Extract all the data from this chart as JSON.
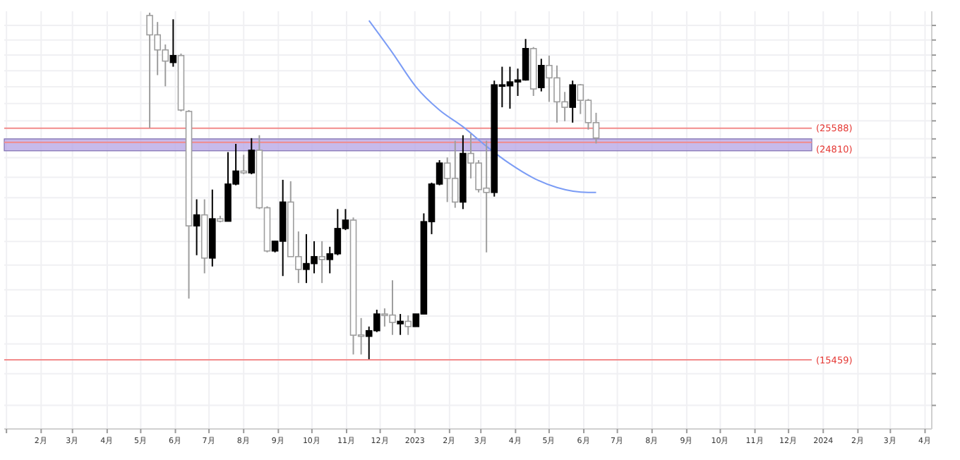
{
  "chart_data": {
    "type": "candlestick",
    "log": "y",
    "grid": true,
    "tick_labels": "x",
    "x": [
      "2022-05-09",
      "2022-05-16",
      "2022-05-23",
      "2022-05-30",
      "2022-06-06",
      "2022-06-13",
      "2022-06-20",
      "2022-06-27",
      "2022-07-04",
      "2022-07-11",
      "2022-07-18",
      "2022-07-25",
      "2022-08-01",
      "2022-08-08",
      "2022-08-15",
      "2022-08-22",
      "2022-08-29",
      "2022-09-05",
      "2022-09-12",
      "2022-09-19",
      "2022-09-26",
      "2022-10-03",
      "2022-10-10",
      "2022-10-17",
      "2022-10-24",
      "2022-10-31",
      "2022-11-07",
      "2022-11-14",
      "2022-11-21",
      "2022-11-28",
      "2022-12-05",
      "2022-12-12",
      "2022-12-19",
      "2022-12-26",
      "2023-01-02",
      "2023-01-09",
      "2023-01-16",
      "2023-01-23",
      "2023-01-30",
      "2023-02-06",
      "2023-02-13",
      "2023-02-20",
      "2023-02-27",
      "2023-03-06",
      "2023-03-13",
      "2023-03-20",
      "2023-03-27",
      "2023-04-03",
      "2023-04-10",
      "2023-04-17",
      "2023-04-24",
      "2023-05-01",
      "2023-05-08",
      "2023-05-15",
      "2023-05-22",
      "2023-05-29",
      "2023-06-05",
      "2023-06-12"
    ],
    "ohlc": [
      [
        32700,
        32900,
        25600,
        31350
      ],
      [
        31350,
        32240,
        28720,
        30340
      ],
      [
        30340,
        30700,
        28030,
        29610
      ],
      [
        29520,
        32430,
        29250,
        29970
      ],
      [
        29970,
        30100,
        26540,
        26620
      ],
      [
        26540,
        26620,
        17660,
        20690
      ],
      [
        20690,
        21920,
        19410,
        21190
      ],
      [
        21190,
        21920,
        18660,
        19290
      ],
      [
        19290,
        22390,
        18940,
        21010
      ],
      [
        21010,
        21150,
        20850,
        20900
      ],
      [
        20900,
        24290,
        20900,
        22660
      ],
      [
        22660,
        24730,
        22600,
        23310
      ],
      [
        23310,
        24150,
        23150,
        23220
      ],
      [
        23220,
        25040,
        23150,
        24390
      ],
      [
        24390,
        25200,
        21460,
        21520
      ],
      [
        21520,
        21590,
        19530,
        19590
      ],
      [
        19590,
        20030,
        19530,
        20010
      ],
      [
        20010,
        22870,
        18550,
        21790
      ],
      [
        21790,
        22800,
        19350,
        19350
      ],
      [
        19350,
        20440,
        18270,
        18820
      ],
      [
        18820,
        20320,
        18270,
        19060
      ],
      [
        19060,
        20010,
        18660,
        19350
      ],
      [
        19350,
        20010,
        18270,
        19230
      ],
      [
        19230,
        19770,
        18660,
        19470
      ],
      [
        19470,
        21460,
        19410,
        20570
      ],
      [
        20570,
        21460,
        20500,
        20950
      ],
      [
        20950,
        21070,
        15640,
        16310
      ],
      [
        16320,
        16930,
        15640,
        16270
      ],
      [
        16270,
        16620,
        15480,
        16470
      ],
      [
        16470,
        17240,
        16420,
        17080
      ],
      [
        17080,
        17290,
        16620,
        17040
      ],
      [
        17040,
        18380,
        16320,
        16770
      ],
      [
        16720,
        17080,
        16320,
        16810
      ],
      [
        16810,
        17030,
        16320,
        16620
      ],
      [
        16620,
        17080,
        16620,
        17080
      ],
      [
        17080,
        21260,
        17080,
        20880
      ],
      [
        20880,
        22730,
        20320,
        22660
      ],
      [
        22660,
        23870,
        22600,
        23720
      ],
      [
        23720,
        24010,
        21790,
        22940
      ],
      [
        22940,
        24900,
        21520,
        21790
      ],
      [
        21790,
        25200,
        21460,
        24220
      ],
      [
        24220,
        25280,
        22940,
        23720
      ],
      [
        23720,
        23870,
        22250,
        22390
      ],
      [
        22460,
        24900,
        19530,
        22250
      ],
      [
        22250,
        28380,
        22050,
        28120
      ],
      [
        28050,
        29250,
        26780,
        28120
      ],
      [
        28060,
        29250,
        26700,
        28300
      ],
      [
        28300,
        29130,
        27450,
        28420
      ],
      [
        28420,
        31070,
        28380,
        30430
      ],
      [
        30430,
        30530,
        27450,
        27870
      ],
      [
        27950,
        29760,
        27720,
        29330
      ],
      [
        29330,
        29970,
        27100,
        28550
      ],
      [
        28550,
        29330,
        25900,
        27100
      ],
      [
        27100,
        27690,
        25980,
        26780
      ],
      [
        26780,
        28380,
        25900,
        28120
      ],
      [
        28120,
        28170,
        26390,
        27190
      ],
      [
        27190,
        27270,
        25510,
        25900
      ],
      [
        25900,
        26460,
        24750,
        25050
      ]
    ],
    "series": [
      {
        "type": "line",
        "color": "#7b9cf5",
        "x": [
          "2022-11-21",
          "2022-12-12",
          "2023-01-02",
          "2023-01-23",
          "2023-02-13",
          "2023-03-06",
          "2023-03-27",
          "2023-04-17",
          "2023-05-08",
          "2023-06-05",
          "2023-06-12"
        ],
        "values": [
          32340,
          30150,
          28000,
          26620,
          25670,
          24600,
          23680,
          22960,
          22490,
          22250,
          22250
        ]
      }
    ],
    "ylim": [
      13300,
      33000
    ],
    "yticks": [
      {
        "value": 14000,
        "label": null
      },
      {
        "value": 15000,
        "label": null
      },
      {
        "value": 16000,
        "label": null
      },
      {
        "value": 17000,
        "label": null
      },
      {
        "value": 18000,
        "label": null
      },
      {
        "value": 19000,
        "label": null
      },
      {
        "value": 20000,
        "label": null
      },
      {
        "value": 21000,
        "label": null
      },
      {
        "value": 22000,
        "label": null
      },
      {
        "value": 23000,
        "label": null
      },
      {
        "value": 24000,
        "label": null
      },
      {
        "value": 25000,
        "label": null
      },
      {
        "value": 26000,
        "label": null
      },
      {
        "value": 27000,
        "label": null
      },
      {
        "value": 28000,
        "label": null
      },
      {
        "value": 29000,
        "label": null
      },
      {
        "value": 30000,
        "label": null
      },
      {
        "value": 31000,
        "label": null
      },
      {
        "value": 32000,
        "label": null
      }
    ],
    "xlim": [
      "2021-12-30",
      "2024-04-07"
    ],
    "xticks": [
      {
        "value": "2022-01-01",
        "label": null
      },
      {
        "value": "2022-02-01",
        "label": "2月"
      },
      {
        "value": "2022-03-01",
        "label": "3月"
      },
      {
        "value": "2022-04-01",
        "label": "4月"
      },
      {
        "value": "2022-05-01",
        "label": "5月"
      },
      {
        "value": "2022-06-01",
        "label": "6月"
      },
      {
        "value": "2022-07-01",
        "label": "7月"
      },
      {
        "value": "2022-08-01",
        "label": "8月"
      },
      {
        "value": "2022-09-01",
        "label": "9月"
      },
      {
        "value": "2022-10-01",
        "label": "10月"
      },
      {
        "value": "2022-11-01",
        "label": "11月"
      },
      {
        "value": "2022-12-01",
        "label": "12月"
      },
      {
        "value": "2023-01-01",
        "label": "2023"
      },
      {
        "value": "2023-02-01",
        "label": "2月"
      },
      {
        "value": "2023-03-01",
        "label": "3月"
      },
      {
        "value": "2023-04-01",
        "label": "4月"
      },
      {
        "value": "2023-05-01",
        "label": "5月"
      },
      {
        "value": "2023-06-01",
        "label": "6月"
      },
      {
        "value": "2023-07-01",
        "label": "7月"
      },
      {
        "value": "2023-08-01",
        "label": "8月"
      },
      {
        "value": "2023-09-01",
        "label": "9月"
      },
      {
        "value": "2023-10-01",
        "label": "10月"
      },
      {
        "value": "2023-11-01",
        "label": "11月"
      },
      {
        "value": "2023-12-01",
        "label": "12月"
      },
      {
        "value": "2024-01-01",
        "label": "2024"
      },
      {
        "value": "2024-02-01",
        "label": "2月"
      },
      {
        "value": "2024-03-01",
        "label": "3月"
      },
      {
        "value": "2024-04-01",
        "label": "4月"
      }
    ],
    "ref_lines": [
      {
        "axis": "y",
        "value": 25588,
        "label": "(25588)",
        "color": "#f28b8b"
      },
      {
        "axis": "y",
        "value": 24810,
        "label": "(24810)",
        "color": "#f28b8b"
      },
      {
        "axis": "y",
        "value": 15459,
        "label": "(15459)",
        "color": "#f28b8b"
      }
    ],
    "bands": [
      {
        "axis": "y",
        "from": 24360,
        "to": 25000,
        "color": "#b9a9e6"
      }
    ]
  }
}
